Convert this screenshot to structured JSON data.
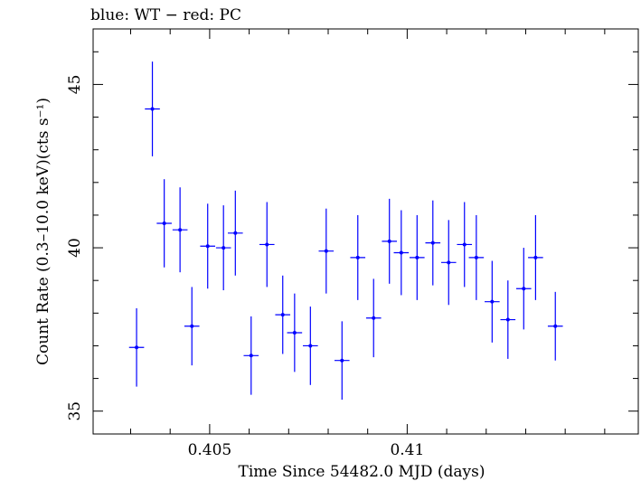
{
  "chart_data": {
    "type": "scatter",
    "title": "blue: WT − red: PC",
    "xlabel": "Time Since 54482.0 MJD (days)",
    "ylabel": "Count Rate (0.3–10.0 keV)(cts s⁻¹)",
    "xlim": [
      0.40205,
      0.41585
    ],
    "ylim": [
      34.3,
      46.7
    ],
    "x_ticks": [
      {
        "value": 0.405,
        "label": "0.405"
      },
      {
        "value": 0.41,
        "label": "0.41"
      }
    ],
    "y_ticks": [
      {
        "value": 35,
        "label": "35"
      },
      {
        "value": 40,
        "label": "40"
      },
      {
        "value": 45,
        "label": "45"
      }
    ],
    "grid": false,
    "series": [
      {
        "color": "#0000ff",
        "x_err": 0.00019,
        "points": [
          {
            "x": 0.40315,
            "y": 36.95,
            "yerr": 1.2
          },
          {
            "x": 0.40355,
            "y": 44.25,
            "yerr": 1.45
          },
          {
            "x": 0.40385,
            "y": 40.75,
            "yerr": 1.35
          },
          {
            "x": 0.40425,
            "y": 40.55,
            "yerr": 1.3
          },
          {
            "x": 0.40455,
            "y": 37.6,
            "yerr": 1.2
          },
          {
            "x": 0.40495,
            "y": 40.05,
            "yerr": 1.3
          },
          {
            "x": 0.40535,
            "y": 40.0,
            "yerr": 1.3
          },
          {
            "x": 0.40565,
            "y": 40.45,
            "yerr": 1.3
          },
          {
            "x": 0.40605,
            "y": 36.7,
            "yerr": 1.2
          },
          {
            "x": 0.40645,
            "y": 40.1,
            "yerr": 1.3
          },
          {
            "x": 0.40685,
            "y": 37.95,
            "yerr": 1.2
          },
          {
            "x": 0.40715,
            "y": 37.4,
            "yerr": 1.2
          },
          {
            "x": 0.40755,
            "y": 37.0,
            "yerr": 1.2
          },
          {
            "x": 0.40795,
            "y": 39.9,
            "yerr": 1.3
          },
          {
            "x": 0.40835,
            "y": 36.55,
            "yerr": 1.2
          },
          {
            "x": 0.40875,
            "y": 39.7,
            "yerr": 1.3
          },
          {
            "x": 0.40915,
            "y": 37.85,
            "yerr": 1.2
          },
          {
            "x": 0.40955,
            "y": 40.2,
            "yerr": 1.3
          },
          {
            "x": 0.40985,
            "y": 39.85,
            "yerr": 1.3
          },
          {
            "x": 0.41025,
            "y": 39.7,
            "yerr": 1.3
          },
          {
            "x": 0.41065,
            "y": 40.15,
            "yerr": 1.3
          },
          {
            "x": 0.41105,
            "y": 39.55,
            "yerr": 1.3
          },
          {
            "x": 0.41145,
            "y": 40.1,
            "yerr": 1.3
          },
          {
            "x": 0.41175,
            "y": 39.7,
            "yerr": 1.3
          },
          {
            "x": 0.41215,
            "y": 38.35,
            "yerr": 1.25
          },
          {
            "x": 0.41255,
            "y": 37.8,
            "yerr": 1.2
          },
          {
            "x": 0.41295,
            "y": 38.75,
            "yerr": 1.25
          },
          {
            "x": 0.41325,
            "y": 39.7,
            "yerr": 1.3
          },
          {
            "x": 0.41375,
            "y": 37.6,
            "yerr": 1.05
          }
        ]
      }
    ]
  }
}
